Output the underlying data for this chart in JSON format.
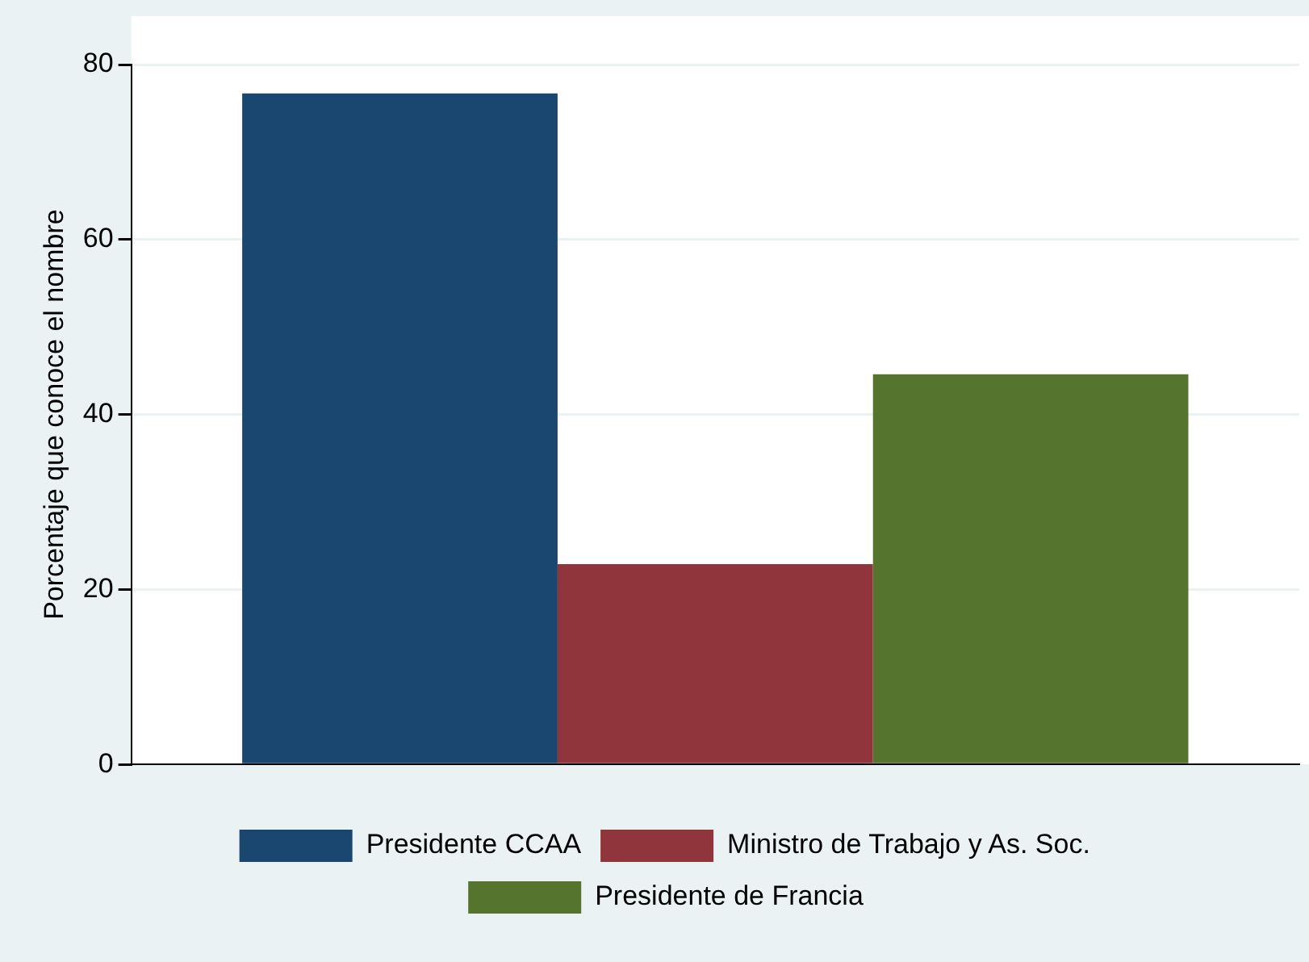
{
  "chart_data": {
    "type": "bar",
    "ylabel": "Porcentaje que conoce el nombre",
    "categories": [
      null
    ],
    "series": [
      {
        "name": "Presidente CCAA",
        "color": "#1a476f",
        "values": [
          76.7
        ]
      },
      {
        "name": "Ministro de Trabajo y As. Soc.",
        "color": "#90353b",
        "values": [
          22.9
        ]
      },
      {
        "name": "Presidente de Francia",
        "color": "#55752f",
        "values": [
          44.6
        ]
      }
    ],
    "ylim": [
      0,
      80
    ],
    "yticks": [
      0,
      20,
      40,
      60,
      80
    ],
    "grid": "y",
    "legend": "bottom"
  }
}
